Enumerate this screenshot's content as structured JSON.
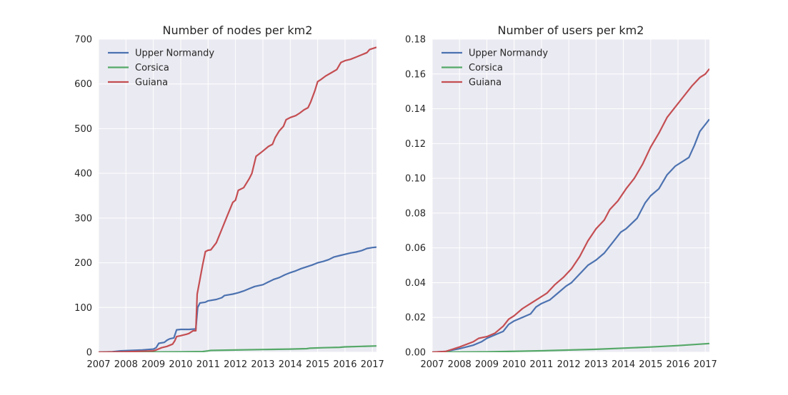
{
  "chart_data": [
    {
      "type": "line",
      "title": "Number of nodes per km2",
      "xlim": [
        2007,
        2017.15
      ],
      "ylim": [
        0,
        700
      ],
      "x_ticks": [
        "2007",
        "2008",
        "2009",
        "2010",
        "2011",
        "2012",
        "2013",
        "2014",
        "2015",
        "2016",
        "2017"
      ],
      "y_ticks": [
        "0",
        "100",
        "200",
        "300",
        "400",
        "500",
        "600",
        "700"
      ],
      "grid": true,
      "legend": "top-left",
      "series": [
        {
          "name": "Upper Normandy",
          "color": "#4c72b0",
          "points": [
            [
              2007,
              0
            ],
            [
              2007.5,
              1
            ],
            [
              2007.8,
              3
            ],
            [
              2008.2,
              4
            ],
            [
              2008.6,
              5
            ],
            [
              2008.8,
              6
            ],
            [
              2009.0,
              7
            ],
            [
              2009.1,
              10
            ],
            [
              2009.2,
              20
            ],
            [
              2009.4,
              22
            ],
            [
              2009.5,
              27
            ],
            [
              2009.6,
              30
            ],
            [
              2009.75,
              32
            ],
            [
              2009.85,
              50
            ],
            [
              2010.0,
              51
            ],
            [
              2010.3,
              51
            ],
            [
              2010.55,
              52
            ],
            [
              2010.62,
              100
            ],
            [
              2010.7,
              110
            ],
            [
              2010.9,
              112
            ],
            [
              2011.0,
              115
            ],
            [
              2011.3,
              118
            ],
            [
              2011.5,
              122
            ],
            [
              2011.6,
              127
            ],
            [
              2011.9,
              130
            ],
            [
              2012.1,
              133
            ],
            [
              2012.3,
              137
            ],
            [
              2012.5,
              142
            ],
            [
              2012.7,
              147
            ],
            [
              2013.0,
              151
            ],
            [
              2013.2,
              157
            ],
            [
              2013.4,
              163
            ],
            [
              2013.6,
              167
            ],
            [
              2013.8,
              173
            ],
            [
              2014.0,
              178
            ],
            [
              2014.2,
              182
            ],
            [
              2014.4,
              187
            ],
            [
              2014.6,
              191
            ],
            [
              2014.8,
              195
            ],
            [
              2015.0,
              200
            ],
            [
              2015.2,
              203
            ],
            [
              2015.4,
              207
            ],
            [
              2015.6,
              213
            ],
            [
              2015.8,
              216
            ],
            [
              2016.0,
              219
            ],
            [
              2016.2,
              222
            ],
            [
              2016.4,
              224
            ],
            [
              2016.6,
              227
            ],
            [
              2016.8,
              232
            ],
            [
              2017.0,
              234
            ],
            [
              2017.15,
              235
            ]
          ]
        },
        {
          "name": "Corsica",
          "color": "#55a868",
          "points": [
            [
              2007,
              0
            ],
            [
              2008,
              0.3
            ],
            [
              2009,
              0.5
            ],
            [
              2010,
              0.8
            ],
            [
              2010.8,
              1.5
            ],
            [
              2011.0,
              3
            ],
            [
              2011.1,
              4
            ],
            [
              2012,
              5
            ],
            [
              2013,
              6
            ],
            [
              2014,
              7
            ],
            [
              2014.6,
              8
            ],
            [
              2014.7,
              9
            ],
            [
              2015.2,
              10
            ],
            [
              2015.8,
              11
            ],
            [
              2016,
              12
            ],
            [
              2016.6,
              13
            ],
            [
              2017.15,
              14
            ]
          ]
        },
        {
          "name": "Guiana",
          "color": "#c44e52",
          "points": [
            [
              2007,
              0
            ],
            [
              2008,
              1
            ],
            [
              2008.5,
              2
            ],
            [
              2009,
              3
            ],
            [
              2009.1,
              5
            ],
            [
              2009.3,
              10
            ],
            [
              2009.5,
              13
            ],
            [
              2009.7,
              18
            ],
            [
              2009.78,
              25
            ],
            [
              2009.85,
              35
            ],
            [
              2010.0,
              37
            ],
            [
              2010.2,
              40
            ],
            [
              2010.3,
              42
            ],
            [
              2010.45,
              48
            ],
            [
              2010.55,
              48
            ],
            [
              2010.6,
              130
            ],
            [
              2010.8,
              195
            ],
            [
              2010.9,
              225
            ],
            [
              2011.0,
              228
            ],
            [
              2011.1,
              229
            ],
            [
              2011.3,
              245
            ],
            [
              2011.5,
              275
            ],
            [
              2011.7,
              305
            ],
            [
              2011.9,
              335
            ],
            [
              2012.0,
              340
            ],
            [
              2012.1,
              362
            ],
            [
              2012.3,
              368
            ],
            [
              2012.5,
              388
            ],
            [
              2012.6,
              400
            ],
            [
              2012.75,
              438
            ],
            [
              2012.9,
              445
            ],
            [
              2013.0,
              450
            ],
            [
              2013.2,
              460
            ],
            [
              2013.35,
              465
            ],
            [
              2013.45,
              480
            ],
            [
              2013.6,
              495
            ],
            [
              2013.75,
              505
            ],
            [
              2013.85,
              520
            ],
            [
              2014.0,
              525
            ],
            [
              2014.2,
              529
            ],
            [
              2014.35,
              535
            ],
            [
              2014.5,
              542
            ],
            [
              2014.65,
              547
            ],
            [
              2014.75,
              560
            ],
            [
              2014.9,
              585
            ],
            [
              2015.0,
              605
            ],
            [
              2015.1,
              609
            ],
            [
              2015.3,
              618
            ],
            [
              2015.5,
              625
            ],
            [
              2015.7,
              632
            ],
            [
              2015.85,
              648
            ],
            [
              2016.0,
              652
            ],
            [
              2016.2,
              655
            ],
            [
              2016.4,
              660
            ],
            [
              2016.6,
              665
            ],
            [
              2016.8,
              670
            ],
            [
              2016.9,
              677
            ],
            [
              2017.15,
              682
            ]
          ]
        }
      ]
    },
    {
      "type": "line",
      "title": "Number of users per km2",
      "xlim": [
        2007,
        2017.15
      ],
      "ylim": [
        0,
        0.18
      ],
      "x_ticks": [
        "2007",
        "2008",
        "2009",
        "2010",
        "2011",
        "2012",
        "2013",
        "2014",
        "2015",
        "2016",
        "2017"
      ],
      "y_ticks": [
        "0.00",
        "0.02",
        "0.04",
        "0.06",
        "0.08",
        "0.10",
        "0.12",
        "0.14",
        "0.16",
        "0.18"
      ],
      "grid": true,
      "legend": "top-left",
      "series": [
        {
          "name": "Upper Normandy",
          "color": "#4c72b0",
          "points": [
            [
              2007,
              0
            ],
            [
              2007.5,
              0.0005
            ],
            [
              2008,
              0.002
            ],
            [
              2008.5,
              0.004
            ],
            [
              2008.8,
              0.006
            ],
            [
              2009,
              0.008
            ],
            [
              2009.3,
              0.01
            ],
            [
              2009.6,
              0.012
            ],
            [
              2009.8,
              0.016
            ],
            [
              2010,
              0.018
            ],
            [
              2010.3,
              0.02
            ],
            [
              2010.6,
              0.022
            ],
            [
              2010.8,
              0.026
            ],
            [
              2011,
              0.028
            ],
            [
              2011.3,
              0.03
            ],
            [
              2011.6,
              0.034
            ],
            [
              2011.9,
              0.038
            ],
            [
              2012.1,
              0.04
            ],
            [
              2012.4,
              0.045
            ],
            [
              2012.7,
              0.05
            ],
            [
              2013,
              0.053
            ],
            [
              2013.3,
              0.057
            ],
            [
              2013.6,
              0.063
            ],
            [
              2013.9,
              0.069
            ],
            [
              2014.1,
              0.071
            ],
            [
              2014.5,
              0.077
            ],
            [
              2014.8,
              0.086
            ],
            [
              2015,
              0.09
            ],
            [
              2015.3,
              0.094
            ],
            [
              2015.6,
              0.102
            ],
            [
              2015.9,
              0.107
            ],
            [
              2016.2,
              0.11
            ],
            [
              2016.4,
              0.112
            ],
            [
              2016.6,
              0.119
            ],
            [
              2016.8,
              0.127
            ],
            [
              2017,
              0.131
            ],
            [
              2017.15,
              0.134
            ]
          ]
        },
        {
          "name": "Corsica",
          "color": "#55a868",
          "points": [
            [
              2007,
              0
            ],
            [
              2009,
              0.0002
            ],
            [
              2011,
              0.0008
            ],
            [
              2013,
              0.0017
            ],
            [
              2015,
              0.003
            ],
            [
              2016,
              0.0038
            ],
            [
              2017.15,
              0.005
            ]
          ]
        },
        {
          "name": "Guiana",
          "color": "#c44e52",
          "points": [
            [
              2007,
              0
            ],
            [
              2007.5,
              0.0005
            ],
            [
              2008,
              0.003
            ],
            [
              2008.5,
              0.006
            ],
            [
              2008.7,
              0.008
            ],
            [
              2009,
              0.009
            ],
            [
              2009.3,
              0.011
            ],
            [
              2009.6,
              0.015
            ],
            [
              2009.8,
              0.019
            ],
            [
              2010,
              0.021
            ],
            [
              2010.3,
              0.025
            ],
            [
              2010.6,
              0.028
            ],
            [
              2010.9,
              0.031
            ],
            [
              2011.2,
              0.034
            ],
            [
              2011.5,
              0.039
            ],
            [
              2011.8,
              0.043
            ],
            [
              2012.1,
              0.048
            ],
            [
              2012.4,
              0.055
            ],
            [
              2012.7,
              0.064
            ],
            [
              2013,
              0.071
            ],
            [
              2013.3,
              0.076
            ],
            [
              2013.5,
              0.082
            ],
            [
              2013.8,
              0.087
            ],
            [
              2014.1,
              0.094
            ],
            [
              2014.4,
              0.1
            ],
            [
              2014.7,
              0.108
            ],
            [
              2015,
              0.118
            ],
            [
              2015.3,
              0.126
            ],
            [
              2015.6,
              0.135
            ],
            [
              2015.9,
              0.141
            ],
            [
              2016.2,
              0.147
            ],
            [
              2016.5,
              0.153
            ],
            [
              2016.8,
              0.158
            ],
            [
              2017,
              0.16
            ],
            [
              2017.15,
              0.163
            ]
          ]
        }
      ]
    }
  ]
}
